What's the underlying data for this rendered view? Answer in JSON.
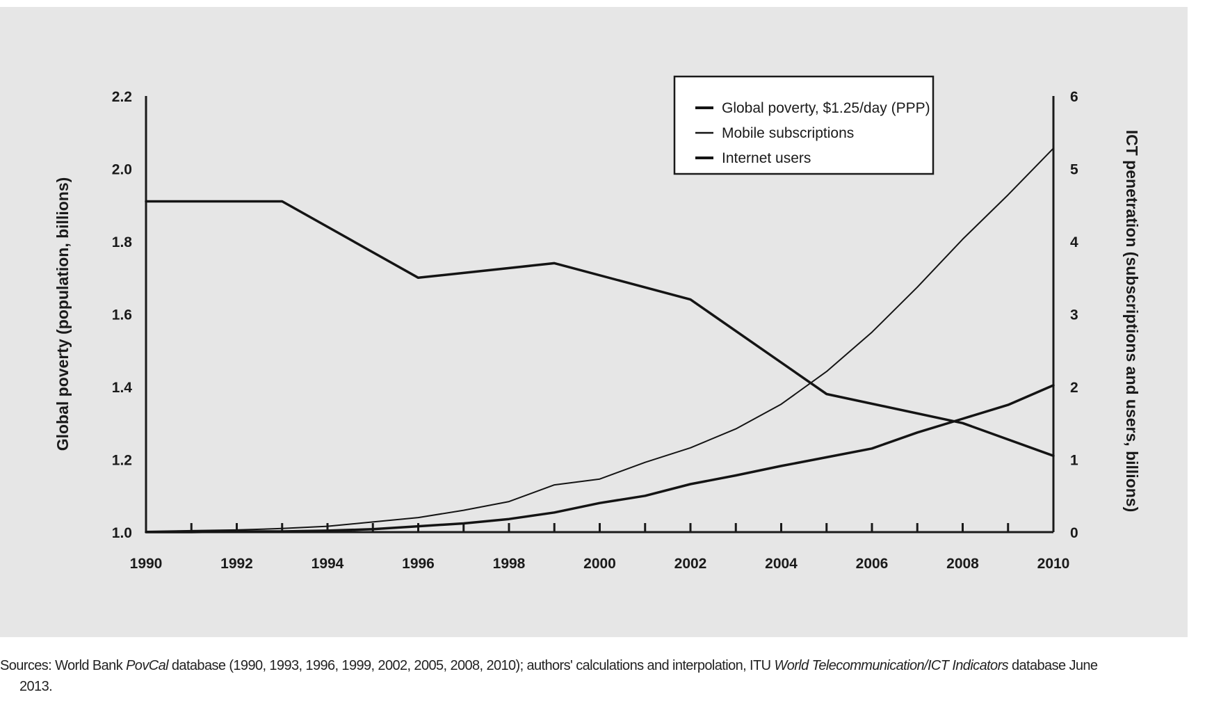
{
  "chart_data": {
    "type": "line",
    "x": [
      1990,
      1991,
      1992,
      1993,
      1994,
      1995,
      1996,
      1997,
      1998,
      1999,
      2000,
      2001,
      2002,
      2003,
      2004,
      2005,
      2006,
      2007,
      2008,
      2009,
      2010
    ],
    "x_ticks": [
      "1990",
      "1992",
      "1994",
      "1996",
      "1998",
      "2000",
      "2002",
      "2004",
      "2006",
      "2008",
      "2010"
    ],
    "xlim": [
      1990,
      2010
    ],
    "y_left": {
      "label": "Global poverty (population, billions)",
      "ylim": [
        1.0,
        2.2
      ],
      "ticks": [
        "1.0",
        "1.2",
        "1.4",
        "1.6",
        "1.8",
        "2.0",
        "2.2"
      ]
    },
    "y_right": {
      "label": "ICT penetration (subscriptions and users, billions)",
      "ylim": [
        0,
        6
      ],
      "ticks": [
        "0",
        "1",
        "2",
        "3",
        "4",
        "5",
        "6"
      ]
    },
    "series": [
      {
        "name": "Global poverty, $1.25/day (PPP)",
        "axis": "left",
        "x": [
          1990,
          1993,
          1996,
          1999,
          2002,
          2005,
          2008,
          2010
        ],
        "values": [
          1.91,
          1.91,
          1.7,
          1.74,
          1.64,
          1.38,
          1.3,
          1.21
        ],
        "stroke_width": 3.5
      },
      {
        "name": "Mobile subscriptions",
        "axis": "right",
        "x": [
          1990,
          1991,
          1992,
          1993,
          1994,
          1995,
          1996,
          1997,
          1998,
          1999,
          2000,
          2001,
          2002,
          2003,
          2004,
          2005,
          2006,
          2007,
          2008,
          2009,
          2010
        ],
        "values": [
          0.01,
          0.02,
          0.03,
          0.05,
          0.08,
          0.14,
          0.2,
          0.3,
          0.42,
          0.65,
          0.73,
          0.96,
          1.16,
          1.42,
          1.76,
          2.21,
          2.75,
          3.37,
          4.03,
          4.64,
          5.28
        ],
        "stroke_width": 2
      },
      {
        "name": "Internet users",
        "axis": "right",
        "x": [
          1990,
          1991,
          1992,
          1993,
          1994,
          1995,
          1996,
          1997,
          1998,
          1999,
          2000,
          2001,
          2002,
          2003,
          2004,
          2005,
          2006,
          2007,
          2008,
          2009,
          2010
        ],
        "values": [
          0.0,
          0.0,
          0.01,
          0.01,
          0.02,
          0.04,
          0.08,
          0.12,
          0.18,
          0.27,
          0.4,
          0.5,
          0.66,
          0.78,
          0.91,
          1.03,
          1.15,
          1.37,
          1.56,
          1.75,
          2.02
        ],
        "stroke_width": 3.5
      }
    ],
    "legend": {
      "placement": "top-right",
      "items": [
        "Global poverty, $1.25/day (PPP)",
        "Mobile subscriptions",
        "Internet users"
      ]
    },
    "grid": false
  },
  "source": {
    "line1_a": "Sources: World Bank ",
    "line1_b": "PovCal",
    "line1_c": " database (1990, 1993, 1996, 1999, 2002, 2005, 2008, 2010); authors' calculations and interpolation, ITU ",
    "line1_d": "World Telecommunication/ICT Indicators",
    "line1_e": " database June",
    "line2": "2013."
  }
}
